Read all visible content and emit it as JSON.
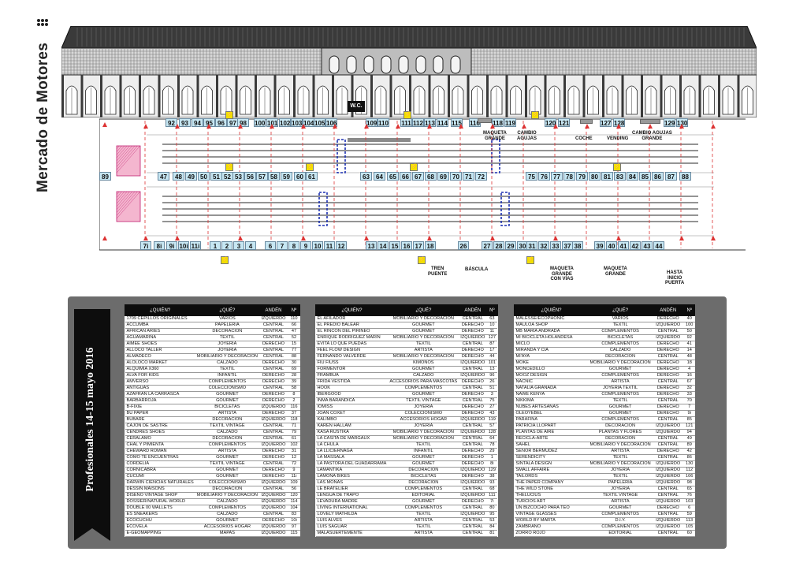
{
  "brand": {
    "title": "Mercado de Motores"
  },
  "ribbon": {
    "text": "Profesionales 14-15 mayo 2016"
  },
  "building": {
    "wc_label": "W.C."
  },
  "map": {
    "top_row": [
      "92",
      "93",
      "94",
      "95",
      "96",
      "97",
      "98",
      "100",
      "101",
      "102",
      "103",
      "104",
      "105",
      "106",
      "109",
      "110",
      "111",
      "112",
      "113",
      "114",
      "115",
      "116",
      "118",
      "119",
      "120",
      "121",
      "127",
      "128",
      "129",
      "130"
    ],
    "upper_middle_row": [
      "47",
      "48",
      "49",
      "50",
      "51",
      "52",
      "53",
      "56",
      "57",
      "58",
      "59",
      "60",
      "61",
      "63",
      "64",
      "65",
      "66",
      "67",
      "68",
      "69",
      "70",
      "71",
      "72",
      "75",
      "76",
      "77",
      "78",
      "79",
      "80",
      "81",
      "83",
      "84",
      "85",
      "86",
      "87",
      "88",
      "89"
    ],
    "bottom_row": [
      "7i",
      "8i",
      "9i",
      "10i",
      "11i",
      "1",
      "2",
      "3",
      "4",
      "6",
      "7",
      "8",
      "9",
      "10",
      "11",
      "12",
      "13",
      "14",
      "15",
      "16",
      "17",
      "18",
      "26",
      "27",
      "28",
      "29",
      "30",
      "31",
      "32",
      "33",
      "37",
      "38",
      "39",
      "40",
      "41",
      "42",
      "43",
      "44"
    ],
    "labels": {
      "maqueta_grande_top": "MAQUETA\nGRANDE",
      "cambio_agujas": "CAMBIO\nAGUJAS",
      "coche": "COCHE",
      "vending": "VENDING",
      "cambio_agujas_grande": "CAMBIO AGUJAS\nGRANDE",
      "tren_puente": "TREN\nPUENTE",
      "bascula": "BÁSCULA",
      "maqueta_grande_con_vias": "MAQUETA\nGRANDE\nCON VÍAS",
      "maqueta_grande_bottom": "MAQUETA\nGRANDE",
      "hasta_inicio_puerta": "HASTA\nINICIO\nPUERTA"
    }
  },
  "directory": {
    "headers": [
      "¿QUIÉN?",
      "¿QUÉ?",
      "ANDÉN",
      "Nº"
    ],
    "columns": [
      [
        [
          "1709 CEPILLOS ORIGINALES",
          "VARIOS",
          "IZQUIERDO",
          "110"
        ],
        [
          "ACCUMBA",
          "PAPELERÍA",
          "CENTRAL",
          "66"
        ],
        [
          "AFRICAN ARIES",
          "DECORACIÓN",
          "CENTRAL",
          "47"
        ],
        [
          "AGUAMARINA",
          "TEXTIL",
          "CENTRAL",
          "52"
        ],
        [
          "AIMEE SHOES",
          "JOYERÍA",
          "DERECHO",
          "15"
        ],
        [
          "ALLOCO TALLER",
          "JOYERÍA",
          "CENTRAL",
          "77"
        ],
        [
          "ALMADECO",
          "MOBILIARIO Y DECORACIÓN",
          "CENTRAL",
          "88"
        ],
        [
          "ALOLOCO MARKET",
          "CALZADO",
          "DERECHO",
          "30"
        ],
        [
          "ALQUIMIA X360",
          "TEXTIL",
          "CENTRAL",
          "69"
        ],
        [
          "ALVA FOR KIDS",
          "INFANTIL",
          "DERECHO",
          "28"
        ],
        [
          "AMVERSO",
          "COMPLEMENTOS",
          "DERECHO",
          "39"
        ],
        [
          "ANTIGUAS",
          "COLECCIONISMO",
          "CENTRAL",
          "58"
        ],
        [
          "AZAFRAN LA CARRASCA",
          "GOURMET",
          "DERECHO",
          "8"
        ],
        [
          "BARBARROJA",
          "GOURMET",
          "DERECHO",
          "2"
        ],
        [
          "B-FIXIE",
          "BICICLETAS",
          "IZQUIERDO",
          "116"
        ],
        [
          "BU PAPER",
          "ARTISTA",
          "DERECHO",
          "37"
        ],
        [
          "BUBARE",
          "DECORACIÓN",
          "IZQUIERDO",
          "118"
        ],
        [
          "CAJÓN DE SASTRE",
          "TEXTIL VINTAGE",
          "CENTRAL",
          "71"
        ],
        [
          "CENDRÉS SHOES",
          "CALZADO",
          "CENTRAL",
          "79"
        ],
        [
          "CERALAMO",
          "DECORACIÓN",
          "CENTRAL",
          "61"
        ],
        [
          "CHAL Y PIMIENTA",
          "COMPLEMENTOS",
          "IZQUIERDO",
          "102"
        ],
        [
          "CHEWARD ROMAN",
          "ARTISTA",
          "DERECHO",
          "31"
        ],
        [
          "CÓMO TE ENCUENTRAS",
          "GOURMET",
          "DERECHO",
          "12"
        ],
        [
          "CORDELIA",
          "TEXTIL VINTAGE",
          "CENTRAL",
          "72"
        ],
        [
          "CORNICABRA",
          "GOURMET",
          "DERECHO",
          "9"
        ],
        [
          "CUCUMI",
          "GOURMET",
          "DERECHO",
          "11i"
        ],
        [
          "DARWIN CIENCIAS NATURALES",
          "COLECCIONISMO",
          "IZQUIERDO",
          "109"
        ],
        [
          "DESSIN MAISONS",
          "DECORACIÓN",
          "CENTRAL",
          "56"
        ],
        [
          "DISEÑO VINTAGE SHOP",
          "MOBILIARIO Y DECORACIÓN",
          "IZQUIERDO",
          "120"
        ],
        [
          "DOSSIER/NATURAL WORLD",
          "CALZADO",
          "IZQUIERDO",
          "114"
        ],
        [
          "DOUBLE 00 WALLETS",
          "COMPLEMENTOS",
          "IZQUIERDO",
          "104"
        ],
        [
          "ES SNEAKERS",
          "CALZADO",
          "CENTRAL",
          "83"
        ],
        [
          "ECOCUCHU",
          "GOURMET",
          "DERECHO",
          "10i"
        ],
        [
          "ECOVELA",
          "ACCESORIOS HOGAR",
          "IZQUIERDO",
          "97"
        ],
        [
          "E-GEOMAPPING",
          "MAPAS",
          "IZQUIERDO",
          "115"
        ]
      ],
      [
        [
          "EL AFILADOR",
          "MOBILIARIO Y DECORACIÓN",
          "CENTRAL",
          "63"
        ],
        [
          "EL PREDIO BALEAR",
          "GOURMET",
          "DERECHO",
          "10"
        ],
        [
          "EL RINCÓN DEL PIRINEO",
          "GOURMET",
          "DERECHO",
          "11"
        ],
        [
          "ENRIQUE RODRIGUEZ MARIN",
          "MOBILIARIO Y DECORACIÓN",
          "IZQUIERDO",
          "127"
        ],
        [
          "EVITA LO QUE PUEDAS",
          "TEXTIL",
          "CENTRAL",
          "87"
        ],
        [
          "FEEL FLOW DESIGN",
          "ARTISTA",
          "DERECHO",
          "17"
        ],
        [
          "FERNANDO VALVERDE",
          "MOBILIARIO Y DECORACIÓN",
          "DERECHO",
          "44"
        ],
        [
          "FIU FIUSS",
          "KIMONOS",
          "IZQUIERDO",
          "101"
        ],
        [
          "FORMENTOR",
          "GOURMET",
          "CENTRAL",
          "13"
        ],
        [
          "FRAMBUÁ",
          "CALZADO",
          "IZQUIERDO",
          "96"
        ],
        [
          "FRIDA VESTIDA",
          "ACCESORIOS PARA MASCOTAS",
          "DERECHO",
          "26"
        ],
        [
          "HOOK",
          "COMPLEMENTOS",
          "CENTRAL",
          "51"
        ],
        [
          "IBERGOOD",
          "GOURMET",
          "DERECHO",
          "3"
        ],
        [
          "INMA BARANDICA",
          "TEXTIL VINTAGE",
          "CENTRAL",
          "75"
        ],
        [
          "IOMISS",
          "JOYERÍA",
          "DERECHO",
          "27"
        ],
        [
          "JOAN COXET",
          "COLECCIONISMO",
          "DERECHO",
          "43"
        ],
        [
          "KALIMBO",
          "ACCESORIOS HOGAR",
          "IZQUIERDO",
          "119"
        ],
        [
          "KAREN HALLAM",
          "JOYERÍA",
          "CENTRAL",
          "57"
        ],
        [
          "KASA RUSTIKA",
          "MOBILIARIO Y DECORACIÓN",
          "IZQUIERDO",
          "128"
        ],
        [
          "LA CASITA DE MARGAUX",
          "MOBILIARIO Y DECORACIÓN",
          "CENTRAL",
          "64"
        ],
        [
          "LA CHULA",
          "TEXTIL",
          "CENTRAL",
          "78"
        ],
        [
          "LA LLICIERNAGA",
          "INFANTIL",
          "DERECHO",
          "29"
        ],
        [
          "LA MASSALA",
          "GOURMET",
          "DERECHO",
          "1"
        ],
        [
          "LA PASTORA DEL GUADARRAMA",
          "GOURMET",
          "DERECHO",
          "8i"
        ],
        [
          "LAMANTIKA",
          "DECORACIÓN",
          "IZQUIERDO",
          "129"
        ],
        [
          "LAMONA BIKES",
          "BICICLETAS",
          "DERECHO",
          "38"
        ],
        [
          "LAS MONAS",
          "DECORACIÓN",
          "IZQUIERDO",
          "93"
        ],
        [
          "LE BRATELIER",
          "COMPLEMENTOS",
          "CENTRAL",
          "68"
        ],
        [
          "LENGUA DE TRAPO",
          "EDITORIAL",
          "IZQUIERDO",
          "111"
        ],
        [
          "LEVADURA MADRE",
          "GOURMET",
          "DERECHO",
          "7i"
        ],
        [
          "LIVING INTERNATIONAL",
          "COMPLEMENTOS",
          "CENTRAL",
          "80"
        ],
        [
          "LOVELY MATHILDA",
          "TEXTIL",
          "IZQUIERDO",
          "95"
        ],
        [
          "LUIS ALVES",
          "ARTISTA",
          "CENTRAL",
          "53"
        ],
        [
          "LUIS SAGUAR",
          "TEXTIL",
          "CENTRAL",
          "84"
        ],
        [
          "MALASUERTEMENTE",
          "ARTISTA",
          "CENTRAL",
          "81"
        ]
      ],
      [
        [
          "MALESSE/ECOPHONIC",
          "VARIOS",
          "DERECHO",
          "40"
        ],
        [
          "MAULOA SHOP",
          "TEXTIL",
          "IZQUIERDO",
          "100"
        ],
        [
          "MB MARIA ANDRADA",
          "COMPLEMENTOS",
          "CENTRAL",
          "50"
        ],
        [
          "MI BICICLETA HOLANDESA",
          "BICICLETAS",
          "IZQUIERDO",
          "92"
        ],
        [
          "MICLO",
          "COMPLEMENTOS",
          "DERECHO",
          "41"
        ],
        [
          "MIRANDA Y CIA",
          "CALZADO",
          "DERECHO",
          "14"
        ],
        [
          "MI'AYA",
          "DECORACIÓN",
          "CENTRAL",
          "48"
        ],
        [
          "MOKE",
          "MOBILIARIO Y DECORACIÓN",
          "DERECHO",
          "18"
        ],
        [
          "MONCEDILLO",
          "GOURMET",
          "DERECHO",
          "4"
        ],
        [
          "MOOZ DESIGN",
          "COMPLEMENTOS",
          "DERECHO",
          "16"
        ],
        [
          "NACNIC",
          "ARTISTA",
          "CENTRAL",
          "67"
        ],
        [
          "NATALIA GRANADA",
          "JOYERÍA TEXTIL",
          "DERECHO",
          "32"
        ],
        [
          "NAWE KENYA",
          "COMPLEMENTOS",
          "DERECHO",
          "33"
        ],
        [
          "NIKKIMA",
          "TEXTIL",
          "CENTRAL",
          "70"
        ],
        [
          "NUBES ARTESANAS",
          "GOURMET",
          "DERECHO",
          "7"
        ],
        [
          "OLEOYEBEL",
          "GOURMET",
          "DERECHO",
          "9i"
        ],
        [
          "PARAFINA",
          "COMPLEMENTOS",
          "CENTRAL",
          "85"
        ],
        [
          "PATRICIA LLOPART",
          "DECORACIÓN",
          "IZQUIERDO",
          "121"
        ],
        [
          "PLANTAS DE AIRE",
          "PLANTAS Y FLORES",
          "IZQUIERDO",
          "94"
        ],
        [
          "RECICLA-ARTE",
          "DECORACIÓN",
          "CENTRAL",
          "49"
        ],
        [
          "SAHEL",
          "MOBILIARIO Y DECORACIÓN",
          "CENTRAL",
          "89"
        ],
        [
          "SEÑOR BERMUDEZ",
          "ARTISTA",
          "DERECHO",
          "42"
        ],
        [
          "SERENDICITY",
          "TEXTIL",
          "CENTRAL",
          "86"
        ],
        [
          "SINTALA DESIGN",
          "MOBILIARIO Y DECORACIÓN",
          "IZQUIERDO",
          "130"
        ],
        [
          "SMALL AFFAIRE",
          "JOYERÍA",
          "IZQUIERDO",
          "112"
        ],
        [
          "TAILORDS",
          "TEXTIL",
          "IZQUIERDO",
          "106"
        ],
        [
          "THE PAPER COMPANY",
          "PAPELERÍA",
          "IZQUIERDO",
          "98"
        ],
        [
          "THE WILD STONE",
          "JOYERÍA",
          "CENTRAL",
          "65"
        ],
        [
          "THELUCIUS",
          "TEXTIL VINTAGE",
          "CENTRAL",
          "76"
        ],
        [
          "TURCIOS ART",
          "ARTISTA",
          "IZQUIERDO",
          "103"
        ],
        [
          "UN BIZCOCHO PARA TEO",
          "GOURMET",
          "DERECHO",
          "6"
        ],
        [
          "VINTAGE GLASSES",
          "COMPLEMENTOS",
          "CENTRAL",
          "59"
        ],
        [
          "WORLD BY MARTA",
          "D.I.Y.",
          "IZQUIERDO",
          "113"
        ],
        [
          "ZAMBRANO",
          "COMPLEMENTOS",
          "IZQUIERDO",
          "105"
        ],
        [
          "ZORRO ROJO",
          "EDITORIAL",
          "CENTRAL",
          "60"
        ]
      ]
    ]
  }
}
